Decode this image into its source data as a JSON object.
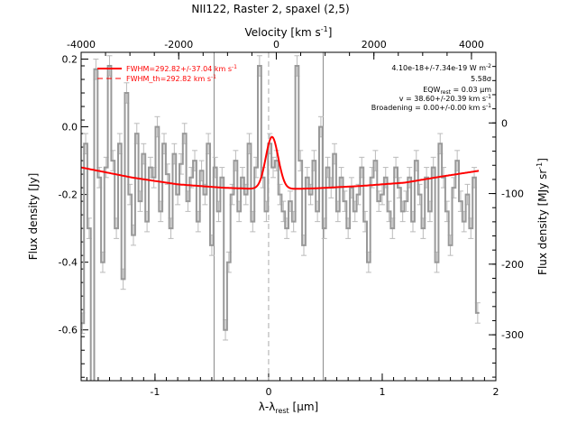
{
  "chart_data": {
    "type": "line",
    "title": "NII122, Raster 2, spaxel (2,5)",
    "xlabel": "λ-λ",
    "xlabel_sub": "rest",
    "xlabel_unit": "[μm]",
    "ylabel": "Flux density [Jy]",
    "top_xlabel": "Velocity [km s",
    "top_xlabel_sup": "-1",
    "top_xlabel_end": "]",
    "right_ylabel": "Flux density [MJy sr",
    "right_ylabel_sup": "-1",
    "right_ylabel_end": "]",
    "xlim": [
      -1.65,
      2.0
    ],
    "ylim": [
      -0.75,
      0.22
    ],
    "top_xlim": [
      -4000,
      4500
    ],
    "right_ylim": [
      -365,
      100
    ],
    "x_ticks": [
      -1,
      0,
      1,
      2
    ],
    "x_tick_labels": [
      "-1",
      "0",
      "1",
      "2"
    ],
    "y_ticks": [
      0.2,
      0.0,
      -0.2,
      -0.4,
      -0.6
    ],
    "y_tick_labels": [
      "0.2",
      "0.0",
      "-0.2",
      "-0.4",
      "-0.6"
    ],
    "top_ticks": [
      -4000,
      -2000,
      0,
      2000,
      4000
    ],
    "top_tick_labels": [
      "-4000",
      "-2000",
      "0",
      "2000",
      "4000"
    ],
    "right_ticks": [
      0,
      -100,
      -200,
      -300
    ],
    "right_tick_labels": [
      "0",
      "-100",
      "-200",
      "-300"
    ],
    "vlines_solid": [
      -0.48,
      0.48
    ],
    "vline_dashed": 0.0,
    "legend": [
      {
        "label": "FWHM=292.82+/-37.04 km s",
        "sup": "-1",
        "style": "solid",
        "color": "#ff0000"
      },
      {
        "label": "FWHM_th=292.82 km s",
        "sup": "-1",
        "style": "dashed",
        "color": "#ff0000"
      }
    ],
    "annotations": [
      {
        "text": "4.10e-18+/-7.34e-19 W m",
        "sup": "-2"
      },
      {
        "text": "5.58σ"
      },
      {
        "text": "EQW",
        "sub": "rest",
        "text2": " = 0.03 μm"
      },
      {
        "text": "v = 38.60+/-20.39 km s",
        "sup": "-1"
      },
      {
        "text": "Broadening = 0.00+/-0.00 km s",
        "sup": "-1"
      }
    ],
    "fit": {
      "continuum": [
        [
          -1.65,
          -0.12
        ],
        [
          -1.2,
          -0.15
        ],
        [
          -0.8,
          -0.17
        ],
        [
          -0.4,
          -0.18
        ],
        [
          0.0,
          -0.185
        ],
        [
          0.4,
          -0.182
        ],
        [
          0.8,
          -0.175
        ],
        [
          1.2,
          -0.165
        ],
        [
          1.5,
          -0.148
        ],
        [
          1.85,
          -0.13
        ]
      ],
      "line_center": 0.03,
      "line_peak": 0.155,
      "line_sigma": 0.055
    },
    "series": [
      {
        "color": "#999999",
        "x": [
          -1.64,
          -1.61,
          -1.58,
          -1.55,
          -1.52,
          -1.49,
          -1.46,
          -1.43,
          -1.4,
          -1.37,
          -1.34,
          -1.31,
          -1.28,
          -1.25,
          -1.22,
          -1.19,
          -1.16,
          -1.13,
          -1.1,
          -1.07,
          -1.04,
          -1.01,
          -0.98,
          -0.95,
          -0.92,
          -0.89,
          -0.86,
          -0.83,
          -0.8,
          -0.77,
          -0.74,
          -0.71,
          -0.68,
          -0.65,
          -0.62,
          -0.59,
          -0.56,
          -0.53,
          -0.5,
          -0.47,
          -0.44,
          -0.41,
          -0.38,
          -0.35,
          -0.32,
          -0.29,
          -0.26,
          -0.23,
          -0.2,
          -0.17,
          -0.14,
          -0.11,
          -0.08,
          -0.05,
          -0.02,
          0.01,
          0.04,
          0.07,
          0.1,
          0.13,
          0.16,
          0.19,
          0.22,
          0.25,
          0.28,
          0.31,
          0.34,
          0.37,
          0.4,
          0.43,
          0.46,
          0.49,
          0.52,
          0.55,
          0.58,
          0.61,
          0.64,
          0.67,
          0.7,
          0.73,
          0.76,
          0.79,
          0.82,
          0.85,
          0.88,
          0.91,
          0.94,
          0.97,
          1.0,
          1.03,
          1.06,
          1.09,
          1.12,
          1.15,
          1.18,
          1.21,
          1.24,
          1.27,
          1.3,
          1.33,
          1.36,
          1.39,
          1.42,
          1.45,
          1.48,
          1.51,
          1.54,
          1.57,
          1.6,
          1.63,
          1.66,
          1.69,
          1.72,
          1.75,
          1.78,
          1.81,
          1.84
        ],
        "y": [
          -0.58,
          -0.05,
          -0.3,
          -0.78,
          0.17,
          -0.15,
          -0.4,
          -0.12,
          0.18,
          -0.1,
          -0.3,
          -0.05,
          -0.45,
          0.1,
          -0.2,
          -0.32,
          -0.02,
          -0.22,
          -0.08,
          -0.28,
          -0.12,
          -0.15,
          0.0,
          -0.25,
          -0.05,
          -0.14,
          -0.3,
          -0.08,
          -0.2,
          -0.11,
          -0.02,
          -0.22,
          -0.15,
          -0.1,
          -0.28,
          -0.13,
          -0.2,
          -0.05,
          -0.35,
          -0.12,
          -0.25,
          -0.15,
          -0.6,
          -0.4,
          -0.2,
          -0.1,
          -0.25,
          -0.15,
          -0.2,
          -0.05,
          -0.28,
          -0.12,
          0.18,
          -0.15,
          -0.25,
          -0.05,
          -0.12,
          -0.1,
          -0.2,
          -0.25,
          -0.3,
          -0.22,
          -0.28,
          0.18,
          -0.1,
          -0.35,
          -0.15,
          -0.2,
          -0.1,
          -0.25,
          0.0,
          -0.3,
          -0.12,
          -0.18,
          -0.08,
          -0.25,
          -0.15,
          -0.22,
          -0.3,
          -0.18,
          -0.25,
          -0.2,
          -0.12,
          -0.28,
          -0.4,
          -0.15,
          -0.1,
          -0.22,
          -0.2,
          -0.15,
          -0.25,
          -0.3,
          -0.12,
          -0.18,
          -0.25,
          -0.22,
          -0.15,
          -0.28,
          -0.1,
          -0.2,
          -0.3,
          -0.15,
          -0.25,
          -0.12,
          -0.4,
          -0.05,
          -0.15,
          -0.25,
          -0.35,
          -0.18,
          -0.1,
          -0.22,
          -0.28,
          -0.2,
          -0.3,
          -0.15,
          -0.55
        ],
        "err": 0.03
      }
    ]
  }
}
